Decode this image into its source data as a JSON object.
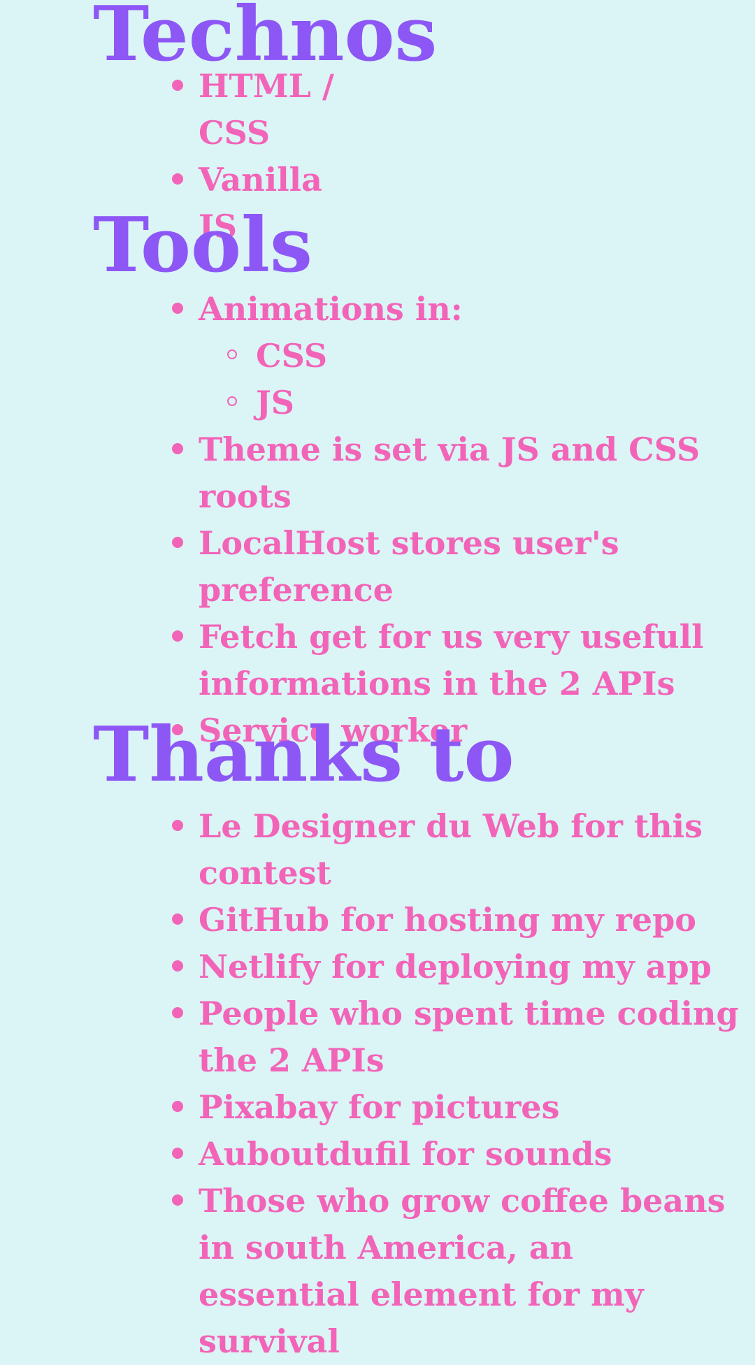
{
  "sections": {
    "technos": {
      "title": "Technos",
      "items": [
        "HTML / CSS",
        "Vanilla JS"
      ]
    },
    "tools": {
      "title": "Tools",
      "animations_label": "Animations in:",
      "animations_sub": [
        "CSS",
        "JS"
      ],
      "items": [
        "Theme is set via JS and CSS roots",
        "LocalHost stores user's preference",
        "Fetch get for us very usefull informations in the 2 APIs",
        "Service worker"
      ]
    },
    "thanks": {
      "title": "Thanks to",
      "items": [
        "Le Designer du Web for this contest",
        "GitHub for hosting my repo",
        "Netlify for deploying my app",
        "People who spent time coding the 2 APIs",
        "Pixabay for pictures",
        "Auboutdufil for sounds",
        "Those who grow coffee beans in south America, an essential element for my survival"
      ]
    }
  },
  "colors": {
    "background": "#dbf4f5",
    "heading": "#8d57f6",
    "list_text": "#f264b8"
  }
}
